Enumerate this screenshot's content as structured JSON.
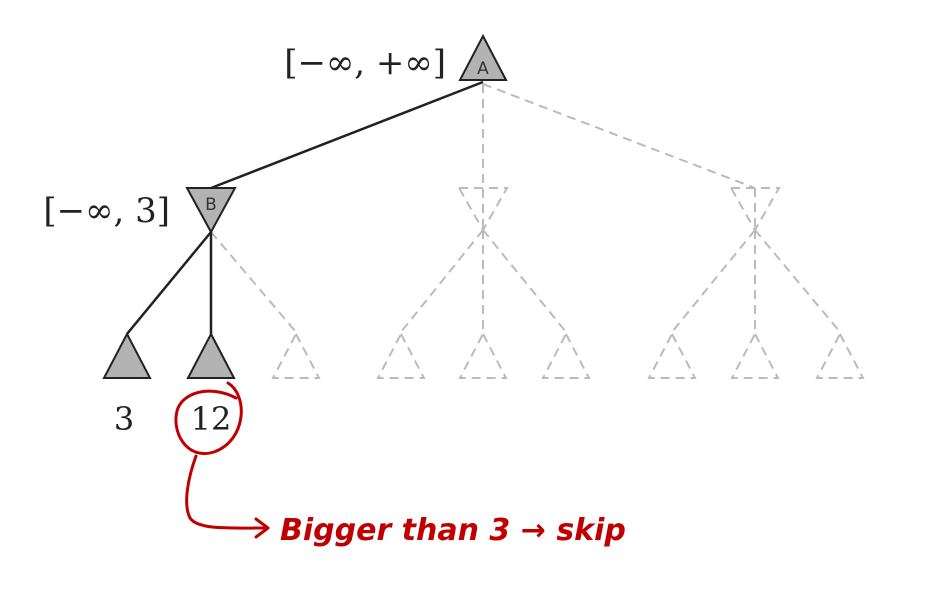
{
  "nodes": {
    "a": {
      "label": "A",
      "bounds": "[−∞, +∞]"
    },
    "b": {
      "label": "B",
      "bounds": "[−∞, 3]"
    }
  },
  "leaves": {
    "first": "3",
    "second": "12"
  },
  "annotation": {
    "text": "Bigger than 3 → skip",
    "color": "#c00000"
  },
  "colors": {
    "active_edge": "#222222",
    "pruned_edge": "#bbbbbb",
    "node_fill": "#b3b3b3"
  }
}
